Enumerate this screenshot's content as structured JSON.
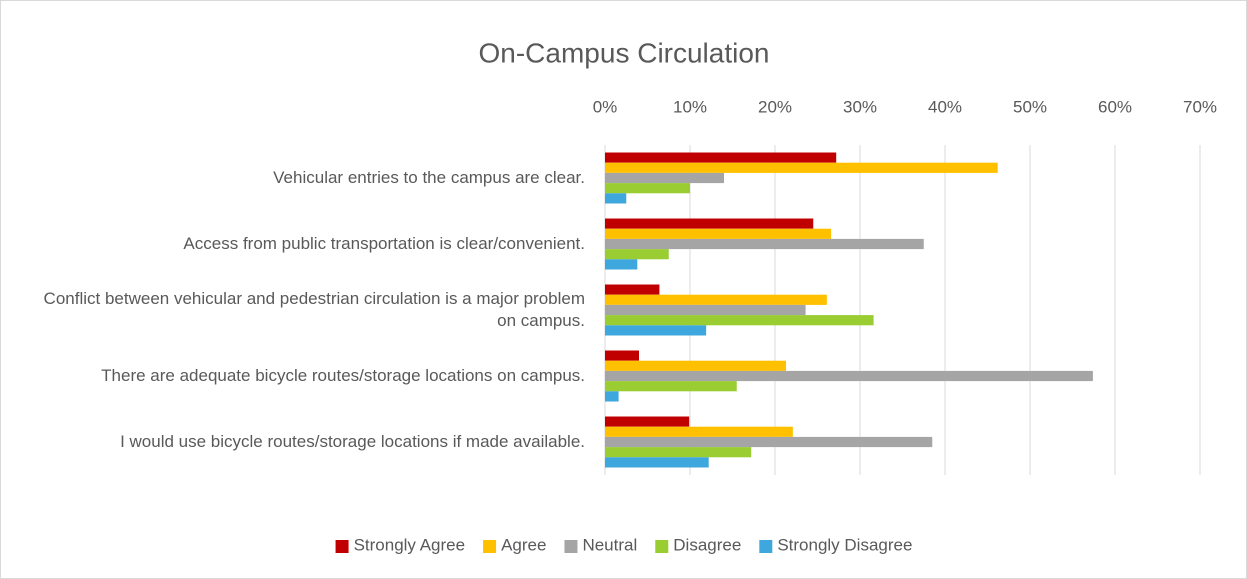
{
  "chart_data": {
    "type": "hbar",
    "title": "On-Campus Circulation",
    "categories": [
      "Vehicular entries to the campus are clear.",
      "Access from public transportation is clear/convenient.",
      "Conflict between vehicular and pedestrian circulation is a major problem on campus.",
      "There are adequate bicycle routes/storage locations on campus.",
      "I would use bicycle routes/storage locations if made available."
    ],
    "series": [
      {
        "name": "Strongly Agree",
        "color": "#c00000",
        "values": [
          27.2,
          24.5,
          6.4,
          4,
          9.9
        ]
      },
      {
        "name": "Agree",
        "color": "#ffc000",
        "values": [
          46.2,
          26.6,
          26.1,
          21.3,
          22.1
        ]
      },
      {
        "name": "Neutral",
        "color": "#a5a5a5",
        "values": [
          14,
          37.5,
          23.6,
          57.4,
          38.5
        ]
      },
      {
        "name": "Disagree",
        "color": "#9acd32",
        "values": [
          10,
          7.5,
          31.6,
          15.5,
          17.2
        ]
      },
      {
        "name": "Strongly Disagree",
        "color": "#3ea8de",
        "values": [
          2.5,
          3.8,
          11.9,
          1.6,
          12.2
        ]
      }
    ],
    "xlim": [
      0,
      70
    ],
    "xticks": [
      {
        "value": 0,
        "label": "0%"
      },
      {
        "value": 10,
        "label": "10%"
      },
      {
        "value": 20,
        "label": "20%"
      },
      {
        "value": 30,
        "label": "30%"
      },
      {
        "value": 40,
        "label": "40%"
      },
      {
        "value": 50,
        "label": "50%"
      },
      {
        "value": 60,
        "label": "60%"
      },
      {
        "value": 70,
        "label": "70%"
      }
    ],
    "grid": true,
    "legend": "bottom"
  }
}
